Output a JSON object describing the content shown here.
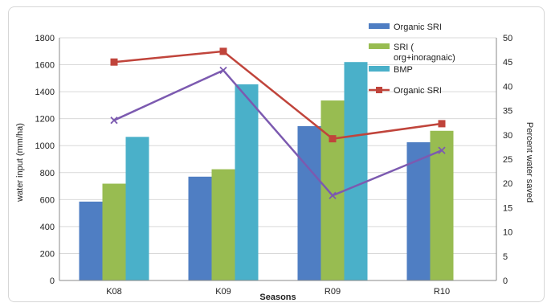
{
  "chart_data": {
    "type": "bar",
    "categories": [
      "K08",
      "K09",
      "R09",
      "R10"
    ],
    "series": [
      {
        "name": "Organic SRI",
        "kind": "bar",
        "axis": "left",
        "color": "#4f7ec3",
        "values": [
          585,
          770,
          1145,
          1025
        ]
      },
      {
        "name": "SRI ( org+inoragnaic)",
        "kind": "bar",
        "axis": "left",
        "color": "#98bc51",
        "values": [
          718,
          825,
          1335,
          1110
        ]
      },
      {
        "name": "BMP",
        "kind": "bar",
        "axis": "left",
        "color": "#4ab0c9",
        "values": [
          1065,
          1455,
          1620,
          null
        ]
      },
      {
        "name": "Organic SRI",
        "kind": "line",
        "axis": "right",
        "color": "#c0443b",
        "marker": "square",
        "values": [
          45,
          47.2,
          29.2,
          32.3
        ]
      },
      {
        "kind": "line",
        "axis": "right",
        "color": "#7c5ab0",
        "marker": "x",
        "values": [
          33,
          43.3,
          17.5,
          26.8
        ]
      }
    ],
    "legend": {
      "placement": "top-right",
      "entries": [
        {
          "label": "Organic SRI",
          "symbol": "bar",
          "color": "#4f7ec3"
        },
        {
          "label": "SRI ( org+inoragnaic)",
          "symbol": "bar",
          "color": "#98bc51"
        },
        {
          "label": "BMP",
          "symbol": "bar",
          "color": "#4ab0c9"
        },
        {
          "label": "Organic SRI",
          "symbol": "line",
          "color": "#c0443b"
        }
      ]
    },
    "xlabel": "Seasons",
    "ylabel": "water input (mm/ha)",
    "y2label": "Percent water saved",
    "ylim": [
      0,
      1800
    ],
    "yticks": [
      0,
      200,
      400,
      600,
      800,
      1000,
      1200,
      1400,
      1600,
      1800
    ],
    "y2lim": [
      0,
      50
    ],
    "y2ticks": [
      0,
      5,
      10,
      15,
      20,
      25,
      30,
      35,
      40,
      45,
      50
    ],
    "grid": true
  }
}
